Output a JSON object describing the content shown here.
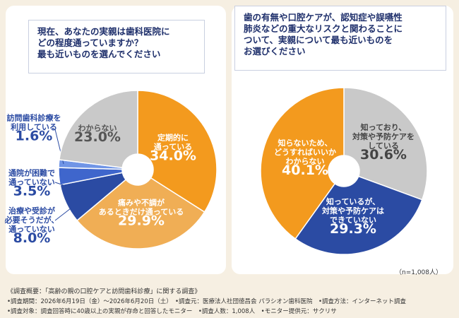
{
  "chart_data": [
    {
      "type": "pie",
      "title": [
        "現在、あなたの実親は歯科医院に",
        "どの程度通っていますか？",
        "最も近いものを選んでください"
      ],
      "categories": [
        "定期的に\n通っている",
        "痛みや不調が\nあるときだけ通っている",
        "治療や受診が\n必要そうだが、\n通っていない",
        "通院が困難で\n通っていない",
        "訪問歯科診療を\n利用している",
        "わからない"
      ],
      "values": [
        34.0,
        29.9,
        8.0,
        3.5,
        1.6,
        23.0
      ],
      "value_labels": [
        "34.0%",
        "29.9%",
        "8.0%",
        "3.5%",
        "1.6%",
        "23.0%"
      ],
      "colors": [
        "#f39a1e",
        "#f0ae55",
        "#2b4ba3",
        "#3f66cc",
        "#7095e6",
        "#c9c9c9"
      ]
    },
    {
      "type": "pie",
      "title": [
        "歯の有無や口腔ケアが、認知症や誤嚥性",
        "肺炎などの重大なリスクと関わることに",
        "ついて、実親について最も近いものを",
        "お選びください"
      ],
      "categories": [
        "知っており、\n対策や予防ケアを\nしている",
        "知っているが、\n対策や予防ケアは\nできていない",
        "知らないため、\nどうすればいいか\nわからない"
      ],
      "values": [
        30.6,
        29.3,
        40.1
      ],
      "value_labels": [
        "30.6%",
        "29.3%",
        "40.1%"
      ],
      "colors": [
        "#c9c9c9",
        "#2b4ba3",
        "#f39a1e"
      ],
      "sample": "（n=1,008人）"
    }
  ],
  "notes": [
    "《調査概要：「高齢の親の口腔ケアと訪問歯科診療」に関する調査》",
    "•調査期間：2026年6月19日（金）〜2026年6月20日（土）　•調査元：医療法人社団徳昌会 パラシオン歯科医院　•調査方法：インターネット調査",
    "•調査対象：調査回答時に40歳以上の実親が存命と回答したモニター　•調査人数：1,008人　•モニター提供元：サクリサ"
  ]
}
